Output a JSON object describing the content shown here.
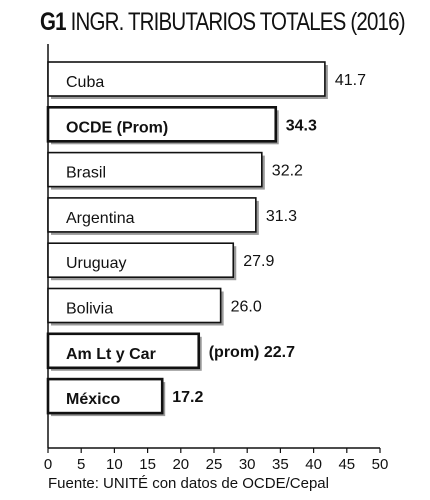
{
  "title": {
    "code": "G1",
    "text": "INGR. TRIBUTARIOS TOTALES (2016)"
  },
  "source": "Fuente: UNITÉ con datos de OCDE/Cepal",
  "chart_data": {
    "type": "bar",
    "orientation": "horizontal",
    "title": "G1 INGR. TRIBUTARIOS TOTALES (2016)",
    "categories": [
      "Cuba",
      "OCDE (Prom)",
      "Brasil",
      "Argentina",
      "Uruguay",
      "Bolivia",
      "Am Lt y Car",
      "México"
    ],
    "values": [
      41.7,
      34.3,
      32.2,
      31.3,
      27.9,
      26.0,
      22.7,
      17.2
    ],
    "value_labels": [
      "41.7",
      "34.3",
      "32.2",
      "31.3",
      "27.9",
      "26.0",
      "(prom) 22.7",
      "17.2"
    ],
    "bold": [
      false,
      true,
      false,
      false,
      false,
      false,
      true,
      true
    ],
    "xlim": [
      0,
      50
    ],
    "xticks": [
      0,
      5,
      10,
      15,
      20,
      25,
      30,
      35,
      40,
      45,
      50
    ],
    "grid": false,
    "bar_fill": "#ffffff",
    "bar_stroke": "#111111",
    "shadow_color": "#9a9a9a"
  }
}
